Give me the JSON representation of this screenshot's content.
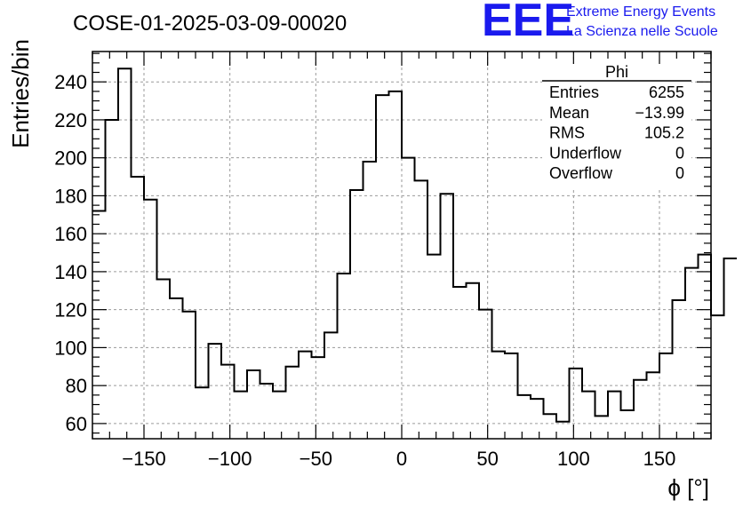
{
  "chart_data": {
    "type": "histogram",
    "title": "COSE-01-2025-03-09-00020",
    "xlabel": "ϕ [°]",
    "ylabel": "Entries/bin",
    "xlim": [
      -180,
      180
    ],
    "ylim": [
      52,
      256
    ],
    "bin_width": 7.5,
    "bin_start": -180,
    "values": [
      172,
      220,
      247,
      190,
      178,
      136,
      126,
      119,
      79,
      102,
      91,
      77,
      88,
      81,
      77,
      90,
      98,
      95,
      108,
      139,
      183,
      198,
      233,
      235,
      200,
      188,
      149,
      181,
      132,
      134,
      120,
      98,
      97,
      75,
      73,
      65,
      61,
      89,
      77,
      64,
      77,
      67,
      83,
      87,
      97,
      125,
      142,
      149,
      117,
      147
    ],
    "x_ticks": [
      -150,
      -100,
      -50,
      0,
      50,
      100,
      150
    ],
    "x_tick_labels": [
      "−150",
      "−100",
      "−50",
      "0",
      "50",
      "100",
      "150"
    ],
    "y_ticks": [
      60,
      80,
      100,
      120,
      140,
      160,
      180,
      200,
      220,
      240
    ],
    "y_tick_labels": [
      "60",
      "80",
      "100",
      "120",
      "140",
      "160",
      "180",
      "200",
      "220",
      "240"
    ],
    "grid": true,
    "line_color": "#000000"
  },
  "logo": {
    "text": "EEE",
    "line1": "Extreme Energy Events",
    "line2": "La Scienza nelle Scuole",
    "color": "#1a1aee"
  },
  "stats": {
    "title": "Phi",
    "rows": [
      {
        "label": "Entries",
        "value": "6255"
      },
      {
        "label": "Mean",
        "value": "−13.99"
      },
      {
        "label": "RMS",
        "value": "105.2"
      },
      {
        "label": "Underflow",
        "value": "0"
      },
      {
        "label": "Overflow",
        "value": "0"
      }
    ]
  }
}
